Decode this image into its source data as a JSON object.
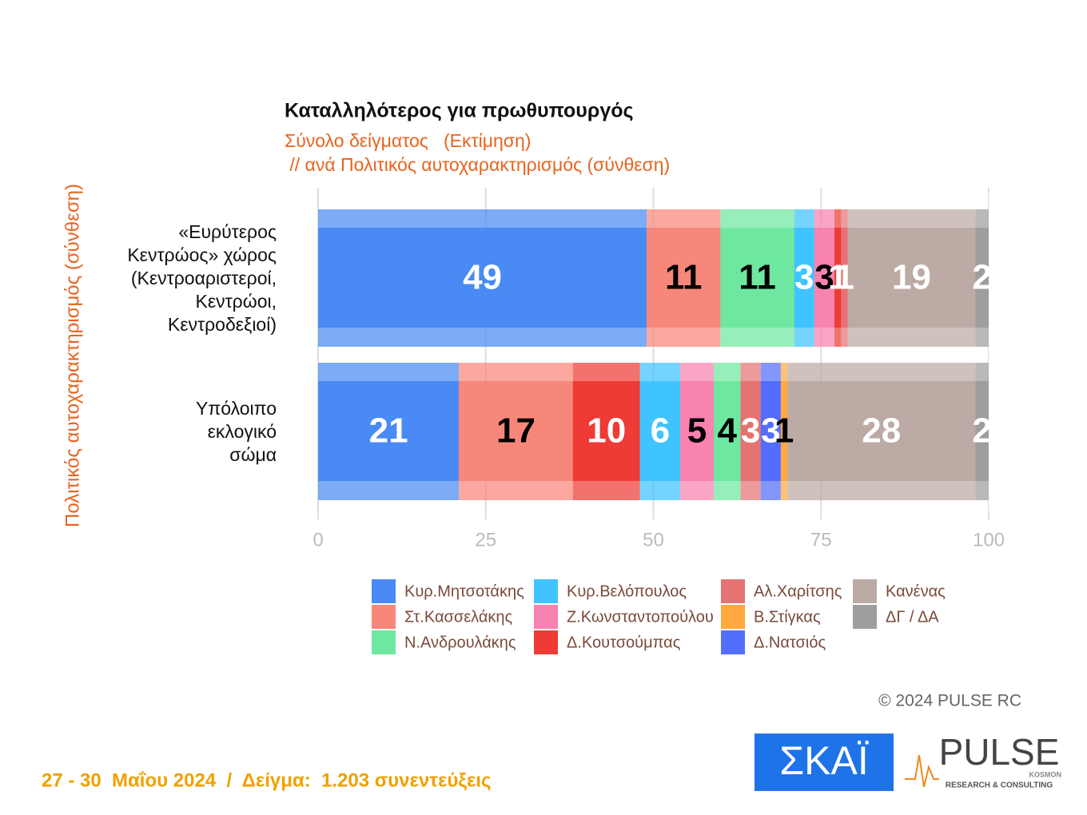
{
  "chart_data": {
    "type": "bar",
    "orientation": "horizontal",
    "stacked": true,
    "title": "Καταλληλότερος για πρωθυπουργός",
    "subtitle": "Σύνολο δείγματος   (Εκτίμηση)",
    "subtitle2": " // ανά Πολιτικός αυτοχαρακτηρισμός (σύνθεση)",
    "y_label": "Πολιτικός αυτοχαρακτηρισμός (σύνθεση)",
    "categories": [
      "«Ευρύτερος\nΚεντρώος» χώρος\n(Κεντροαριστεροί,\nΚεντρώοι,\nΚεντροδεξιοί)",
      "Υπόλοιπο\nεκλογικό\nσώμα"
    ],
    "series": [
      {
        "name": "Κυρ.Μητσοτάκης",
        "color": "#4a8af4",
        "label_color": "#ffffff",
        "values": [
          49,
          21
        ]
      },
      {
        "name": "Στ.Κασσελάκης",
        "color": "#f8877b",
        "label_color": "#000000",
        "values": [
          11,
          17
        ]
      },
      {
        "name": "Ν.Ανδρουλάκης",
        "color": "#6ee8a0",
        "label_color": "#000000",
        "values": [
          11,
          4
        ]
      },
      {
        "name": "Κυρ.Βελόπουλος",
        "color": "#40c4ff",
        "label_color": "#ffffff",
        "values": [
          3,
          6
        ]
      },
      {
        "name": "Ζ.Κωνσταντοπούλου",
        "color": "#f882b0",
        "label_color": "#000000",
        "values": [
          3,
          5
        ]
      },
      {
        "name": "Δ.Κουτσούμπας",
        "color": "#ee3b35",
        "label_color": "#ffffff",
        "values": [
          1,
          10
        ]
      },
      {
        "name": "Αλ.Χαρίτσης",
        "color": "#e57373",
        "label_color": "#ffffff",
        "values": [
          1,
          3
        ]
      },
      {
        "name": "Β.Στίγκας",
        "color": "#ffa940",
        "label_color": "#000000",
        "values": [
          null,
          1
        ]
      },
      {
        "name": "Δ.Νατσιός",
        "color": "#536dfe",
        "label_color": "#ffffff",
        "values": [
          null,
          3
        ]
      },
      {
        "name": "Κανένας",
        "color": "#bcaaa4",
        "label_color": "#ffffff",
        "values": [
          19,
          28
        ]
      },
      {
        "name": "ΔΓ / ΔΑ",
        "color": "#9e9e9e",
        "label_color": "#ffffff",
        "values": [
          2,
          2
        ]
      }
    ],
    "xlim": [
      0,
      100
    ],
    "xticks": [
      0,
      25,
      50,
      75,
      100
    ],
    "grid": true,
    "legend": "bottom"
  },
  "footer": {
    "date_sample": "27 - 30  Μαΐου 2024  /  Δείγμα:  1.203 συνεντεύξεις",
    "copyright": "© 2024 PULSE RC"
  },
  "logos": {
    "skai": "ΣΚΑΪ",
    "pulse": "PULSE",
    "pulse_sub": "KOSMON",
    "pulse_tagline": "RESEARCH & CONSULTING"
  }
}
